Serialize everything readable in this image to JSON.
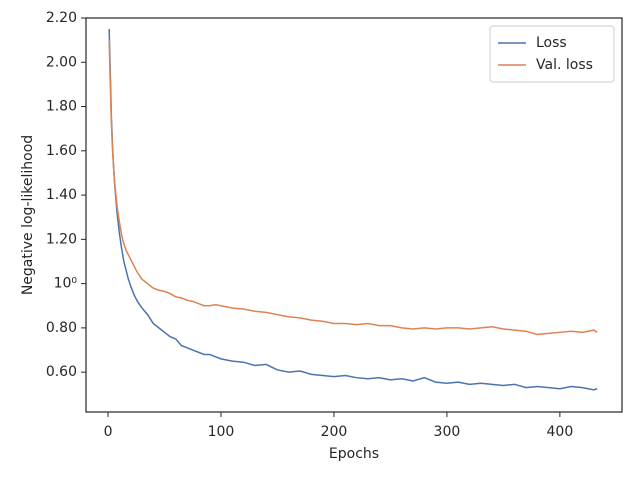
{
  "chart_data": {
    "type": "line",
    "xlabel": "Epochs",
    "ylabel": "Negative log-likelihood",
    "x": [
      1,
      2,
      3,
      4,
      5,
      6,
      8,
      10,
      12,
      14,
      16,
      18,
      20,
      23,
      26,
      30,
      35,
      40,
      45,
      50,
      55,
      60,
      65,
      70,
      75,
      80,
      85,
      90,
      95,
      100,
      110,
      120,
      130,
      140,
      150,
      160,
      170,
      180,
      190,
      200,
      210,
      220,
      230,
      240,
      250,
      260,
      270,
      280,
      290,
      300,
      310,
      320,
      330,
      340,
      350,
      360,
      370,
      380,
      390,
      400,
      410,
      420,
      430,
      433
    ],
    "series": [
      {
        "name": "Loss",
        "color": "#4c72b0",
        "values": [
          2.15,
          1.95,
          1.75,
          1.62,
          1.52,
          1.44,
          1.32,
          1.23,
          1.16,
          1.1,
          1.06,
          1.02,
          0.99,
          0.95,
          0.92,
          0.89,
          0.86,
          0.82,
          0.8,
          0.78,
          0.76,
          0.75,
          0.72,
          0.71,
          0.7,
          0.69,
          0.68,
          0.68,
          0.67,
          0.66,
          0.65,
          0.645,
          0.63,
          0.635,
          0.61,
          0.6,
          0.605,
          0.59,
          0.585,
          0.58,
          0.585,
          0.575,
          0.57,
          0.575,
          0.565,
          0.57,
          0.56,
          0.575,
          0.555,
          0.55,
          0.555,
          0.545,
          0.55,
          0.545,
          0.54,
          0.545,
          0.53,
          0.535,
          0.53,
          0.525,
          0.535,
          0.53,
          0.52,
          0.525
        ]
      },
      {
        "name": "Val. loss",
        "color": "#dd8452",
        "values": [
          2.1,
          1.9,
          1.72,
          1.6,
          1.52,
          1.45,
          1.35,
          1.28,
          1.22,
          1.18,
          1.15,
          1.13,
          1.11,
          1.08,
          1.05,
          1.02,
          1.0,
          0.98,
          0.97,
          0.965,
          0.955,
          0.94,
          0.935,
          0.925,
          0.92,
          0.91,
          0.9,
          0.9,
          0.905,
          0.9,
          0.89,
          0.885,
          0.875,
          0.87,
          0.86,
          0.85,
          0.845,
          0.835,
          0.83,
          0.82,
          0.82,
          0.815,
          0.82,
          0.81,
          0.81,
          0.8,
          0.795,
          0.8,
          0.795,
          0.8,
          0.8,
          0.795,
          0.8,
          0.805,
          0.795,
          0.79,
          0.785,
          0.77,
          0.775,
          0.78,
          0.785,
          0.78,
          0.79,
          0.78
        ]
      }
    ],
    "xlim": [
      -19.5,
      455
    ],
    "xticks": [
      0,
      100,
      200,
      300,
      400
    ],
    "ylim": [
      0.42,
      2.2
    ],
    "yticks": [
      {
        "value": 0.6,
        "label": "0.60"
      },
      {
        "value": 0.8,
        "label": "0.80"
      },
      {
        "value": 1.0,
        "label": "10⁰"
      },
      {
        "value": 1.2,
        "label": "1.20"
      },
      {
        "value": 1.4,
        "label": "1.40"
      },
      {
        "value": 1.6,
        "label": "1.60"
      },
      {
        "value": 1.8,
        "label": "1.80"
      },
      {
        "value": 2.0,
        "label": "2.00"
      },
      {
        "value": 2.2,
        "label": "2.20"
      }
    ],
    "legend": "upper right",
    "grid": false
  }
}
